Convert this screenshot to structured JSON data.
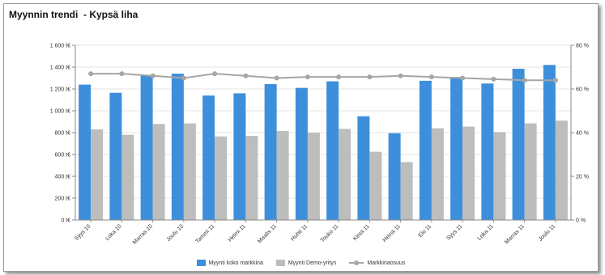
{
  "title": "Myynnin trendi  - Kypsä liha",
  "chart_data": {
    "type": "bar",
    "categories": [
      "Syys 10",
      "Loka 10",
      "Marras 10",
      "Joulu 10",
      "Tammi 11",
      "Helmi 11",
      "Maalis 11",
      "Huhti 11",
      "Touko 11",
      "Kesä 11",
      "Heinä 11",
      "Elo 11",
      "Syys 11",
      "Loka 11",
      "Marras 11",
      "Joulu 11"
    ],
    "series": [
      {
        "name": "Myynti koko markkina",
        "kind": "bar",
        "axis": "left",
        "color": "#3d8fdb",
        "values": [
          1240,
          1165,
          1325,
          1340,
          1140,
          1160,
          1245,
          1210,
          1270,
          950,
          795,
          1275,
          1310,
          1250,
          1385,
          1420
        ]
      },
      {
        "name": "Myynti Demo-yritys",
        "kind": "bar",
        "axis": "left",
        "color": "#bdbdbd",
        "values": [
          830,
          780,
          880,
          885,
          765,
          770,
          815,
          800,
          835,
          625,
          530,
          840,
          855,
          805,
          885,
          910
        ]
      },
      {
        "name": "Markkinaosuus",
        "kind": "line",
        "axis": "right",
        "color": "#a6a6a6",
        "values": [
          67,
          67,
          66,
          65,
          67,
          66,
          65,
          65.5,
          65.5,
          65.5,
          66,
          65.5,
          65,
          64.5,
          64,
          64
        ]
      }
    ],
    "y_left": {
      "min": 0,
      "max": 1600,
      "step": 200,
      "suffix": " t€"
    },
    "y_right": {
      "min": 0,
      "max": 80,
      "step": 20,
      "suffix": " %"
    },
    "grid": true,
    "legend_position": "bottom"
  }
}
